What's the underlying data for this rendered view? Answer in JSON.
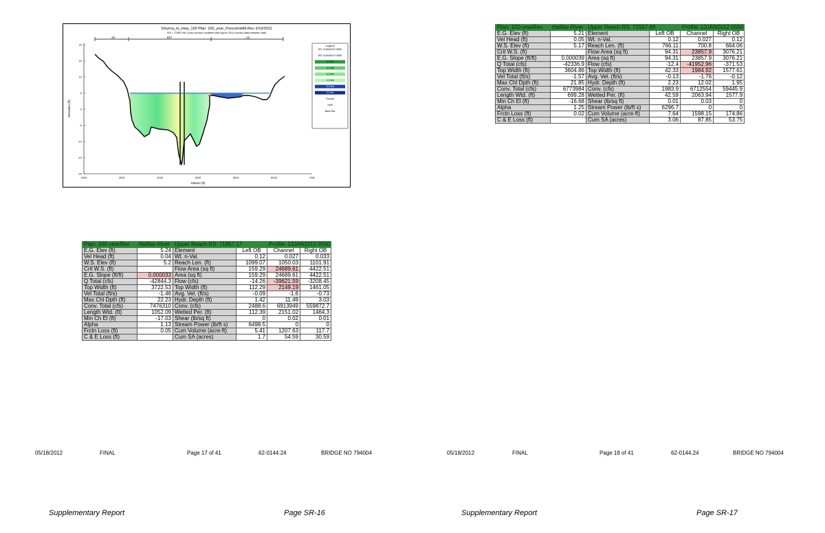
{
  "figure": {
    "title_line1": "Smyrna_to_Hwy_100      Plan: 100_year_PonceInletN-Rev    3/19/2012",
    "title_line2": "RS = 72557.88  Cross section modified with Ayres 2011 survey data between stati",
    "ylabel": "Elevation (ft)",
    "xlabel": "Station (ft)",
    "n_labels": [
      ".12",
      ".027",
      ".12"
    ],
    "yticks": [
      "20",
      "15",
      "10",
      "5",
      "0",
      "-5",
      "-10",
      "-15",
      "-20"
    ],
    "xticks": [
      "1000",
      "2000",
      "3000",
      "4000",
      "5000",
      "6000",
      "7000"
    ],
    "legend": {
      "title": "Legend",
      "items": [
        "EG 13JAN2012 0550",
        "WS 13JAN2012 0550",
        "-2.5 ft/s",
        "-2.0 ft/s",
        "-1.5 ft/s",
        "-1.0 ft/s",
        "-0.5 ft/s",
        "0.0 ft/s",
        "Ground",
        "Ineff",
        "Bank Sta"
      ]
    }
  },
  "table_top": {
    "header": [
      "Plan: 100-yearRev",
      "Halifax River",
      "Upper Reach  RS: 72557.88",
      "Profile: 13JAN2012 0550"
    ],
    "columns": [
      "Element",
      "Left OB",
      "Channel",
      "Right OB"
    ],
    "rows": [
      {
        "label": "E.G. Elev (ft)",
        "value": "5.21",
        "element": "Element",
        "left": "Left OB",
        "channel": "Channel",
        "right": "Right OB"
      },
      {
        "label": "Vel Head (ft)",
        "value": "0.05",
        "element": "Wt. n-Val.",
        "left": "0.12",
        "channel": "0.027",
        "right": "0.12"
      },
      {
        "label": "W.S. Elev (ft)",
        "value": "5.17",
        "element": "Reach Len. (ft)",
        "left": "766.11",
        "channel": "700.8",
        "right": "664.06"
      },
      {
        "label": "Crit W.S. (ft)",
        "value": "",
        "element": "Flow Area (sq ft)",
        "left": "94.31",
        "channel": "23857.9",
        "right": "3076.21"
      },
      {
        "label": "E.G. Slope (ft/ft)",
        "value": "0.000039",
        "element": "Area (sq ft)",
        "left": "94.31",
        "channel": "23857.9",
        "right": "3076.21"
      },
      {
        "label": "Q Total (cfs)",
        "value": "-42336.9",
        "element": "Flow (cfs)",
        "left": "-12.4",
        "channel": "-41952.96",
        "right": "-371.53"
      },
      {
        "label": "Top Width (ft)",
        "value": "3604.86",
        "element": "Top Width (ft)",
        "left": "42.33",
        "channel": "1984.92",
        "right": "1577.61"
      },
      {
        "label": "Vel Total (ft/s)",
        "value": "-1.57",
        "element": "Avg. Vel. (ft/s)",
        "left": "-0.13",
        "channel": "-1.76",
        "right": "-0.12"
      },
      {
        "label": "Max Chl Dpth (ft)",
        "value": "21.85",
        "element": "Hydr. Depth (ft)",
        "left": "2.23",
        "channel": "12.02",
        "right": "1.95"
      },
      {
        "label": "Conv. Total (cfs)",
        "value": "6773984",
        "element": "Conv. (cfs)",
        "left": "1983.9",
        "channel": "6712554",
        "right": "59445.9"
      },
      {
        "label": "Length Wtd. (ft)",
        "value": "699.28",
        "element": "Wetted Per. (ft)",
        "left": "42.59",
        "channel": "2063.94",
        "right": "1577.9"
      },
      {
        "label": "Min Ch El (ft)",
        "value": "-16.68",
        "element": "Shear (lb/sq ft)",
        "left": "0.01",
        "channel": "0.03",
        "right": "0"
      },
      {
        "label": "Alpha",
        "value": "1.25",
        "element": "Stream Power (lb/ft s)",
        "left": "6296.7",
        "channel": "0",
        "right": "0"
      },
      {
        "label": "Frctn Loss (ft)",
        "value": "0.02",
        "element": "Cum Volume (acre-ft)",
        "left": "7.64",
        "channel": "1598.15",
        "right": "174.86"
      },
      {
        "label": "C & E Loss (ft)",
        "value": "",
        "element": "Cum SA (acres)",
        "left": "3.06",
        "channel": "87.85",
        "right": "53.75"
      }
    ]
  },
  "table_bottom": {
    "header": [
      "Plan: 100-yearRev",
      "Halifax River",
      "Upper Reach  RS: 71857.17",
      "Profile: 13JAN2012 0550"
    ],
    "rows": [
      {
        "label": "E.G. Elev (ft)",
        "value": "5.24",
        "element": "Element",
        "left": "Left OB",
        "channel": "Channel",
        "right": "Right OB"
      },
      {
        "label": "Vel Head (ft)",
        "value": "0.04",
        "element": "Wt. n-Val.",
        "left": "0.12",
        "channel": "0.027",
        "right": "0.033"
      },
      {
        "label": "W.S. Elev (ft)",
        "value": "5.2",
        "element": "Reach Len. (ft)",
        "left": "1099.07",
        "channel": "1050.03",
        "right": "1101.91"
      },
      {
        "label": "Crit W.S. (ft)",
        "value": "",
        "element": "Flow Area (sq ft)",
        "left": "159.29",
        "channel": "24689.61",
        "right": "4422.51"
      },
      {
        "label": "E.G. Slope (ft/ft)",
        "value": "0.000033",
        "element": "Area (sq ft)",
        "left": "159.29",
        "channel": "24689.61",
        "right": "4422.51"
      },
      {
        "label": "Q Total (cfs)",
        "value": "-42844.3",
        "element": "Flow (cfs)",
        "left": "-14.26",
        "channel": "-39621.59",
        "right": "-3208.45"
      },
      {
        "label": "Top Width (ft)",
        "value": "3722.53",
        "element": "Top Width (ft)",
        "left": "112.29",
        "channel": "2149.19",
        "right": "1461.05"
      },
      {
        "label": "Vel Total (ft/s)",
        "value": "-1.46",
        "element": "Avg. Vel. (ft/s)",
        "left": "-0.09",
        "channel": "-1.6",
        "right": "-0.73"
      },
      {
        "label": "Max Chl Dpth (ft)",
        "value": "22.23",
        "element": "Hydr. Depth (ft)",
        "left": "1.42",
        "channel": "11.49",
        "right": "3.03"
      },
      {
        "label": "Conv. Total (cfs)",
        "value": "7476310",
        "element": "Conv. (cfs)",
        "left": "2488.6",
        "channel": "6913949",
        "right": "559872.7"
      },
      {
        "label": "Length Wtd. (ft)",
        "value": "1052.09",
        "element": "Wetted Per. (ft)",
        "left": "112.39",
        "channel": "2151.02",
        "right": "1464.3"
      },
      {
        "label": "Min Ch El (ft)",
        "value": "-17.03",
        "element": "Shear (lb/sq ft)",
        "left": "0",
        "channel": "0.02",
        "right": "0.01"
      },
      {
        "label": "Alpha",
        "value": "1.13",
        "element": "Stream Power (lb/ft s)",
        "left": "6498.5",
        "channel": "0",
        "right": "0"
      },
      {
        "label": "Frctn Loss (ft)",
        "value": "0.05",
        "element": "Cum Volume (acre-ft)",
        "left": "5.41",
        "channel": "1207.63",
        "right": "117.7"
      },
      {
        "label": "C & E Loss (ft)",
        "value": "",
        "element": "Cum SA (acres)",
        "left": "1.7",
        "channel": "54.59",
        "right": "30.59"
      }
    ]
  },
  "footer_left": {
    "date": "05/18/2012",
    "status": "FINAL",
    "page": "Page 17 of 41",
    "project": "62-0144.24",
    "bridge": "BRIDGE NO 794004"
  },
  "footer_right": {
    "date": "05/18/2012",
    "status": "FINAL",
    "page": "Page 18 of 41",
    "project": "62-0144.24",
    "bridge": "BRIDGE NO 794004"
  },
  "report_left": {
    "title": "Supplementary Report",
    "page": "Page SR-16"
  },
  "report_right": {
    "title": "Supplementary Report",
    "page": "Page SR-17"
  }
}
